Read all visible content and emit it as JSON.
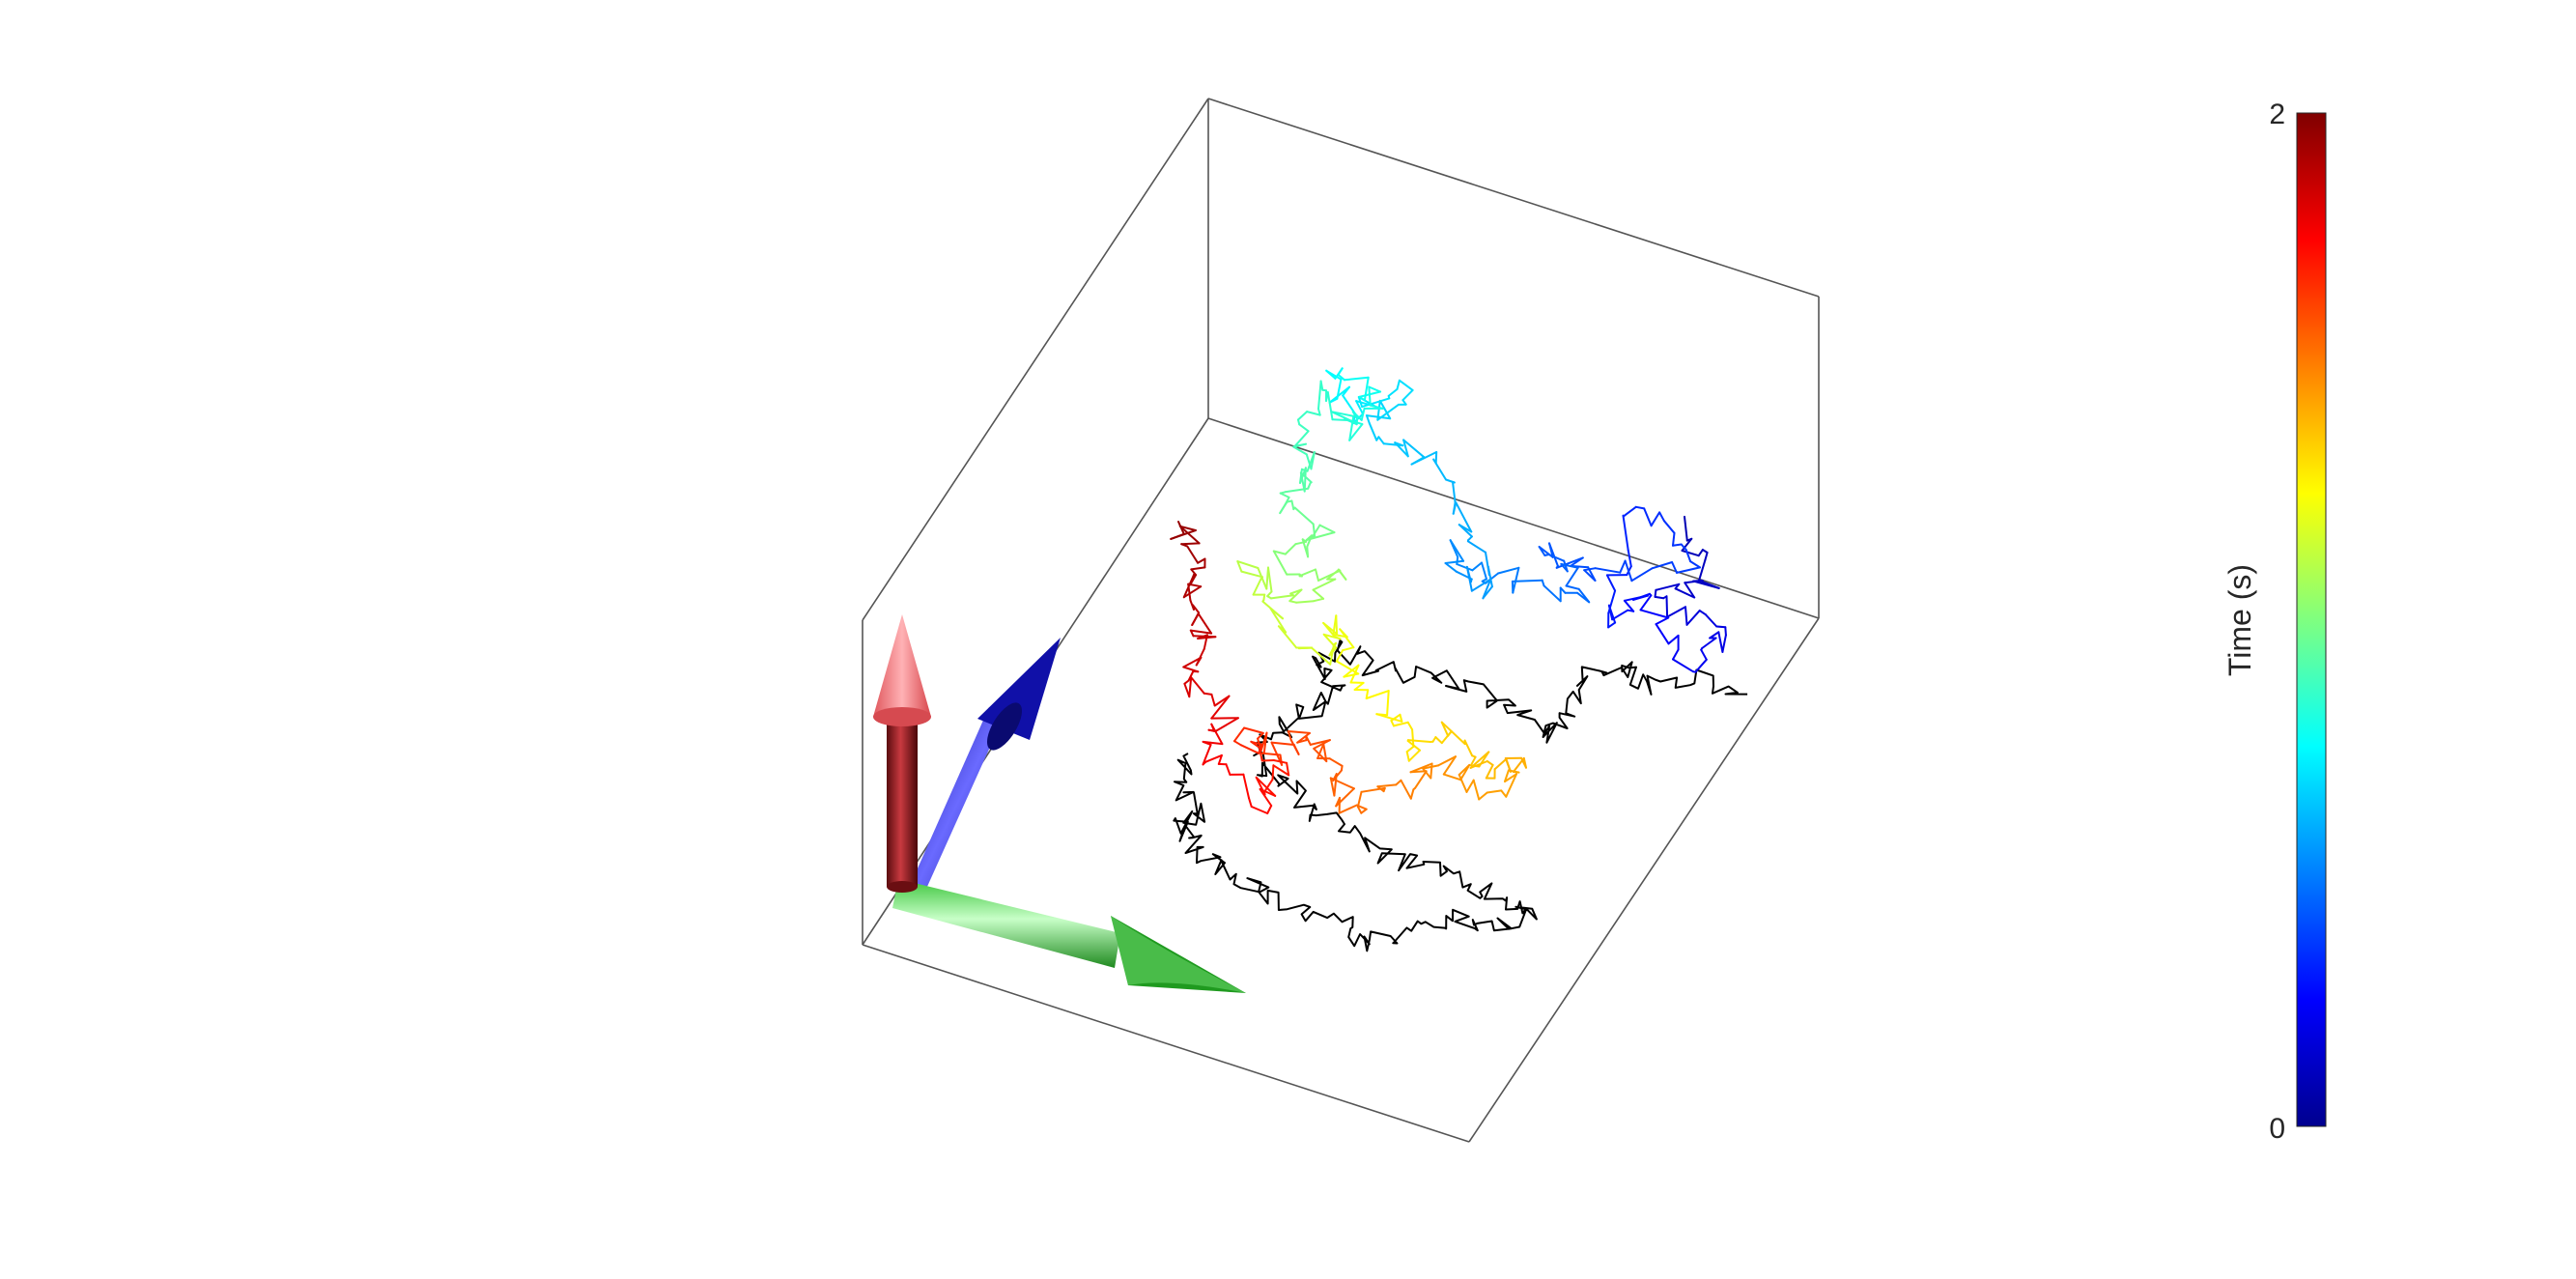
{
  "chart_data": {
    "type": "line",
    "title": "",
    "subtitle": "",
    "description_mode": "3d-trajectory",
    "colormap": "jet",
    "colorbar": {
      "label": "Time (s)",
      "min": 0,
      "max": 2,
      "tick_labels": [
        "0",
        "2"
      ]
    },
    "box": {
      "visible": true,
      "edge_color": "#555555"
    },
    "grid": false,
    "series": [
      {
        "name": "",
        "color_mode": "time-colored",
        "time_range": [
          0,
          2
        ]
      },
      {
        "name": "",
        "color_mode": "black",
        "color": "#000000"
      }
    ],
    "axis_arrows": [
      {
        "color": "#c0282c",
        "semantic": "vertical-axis-arrow"
      },
      {
        "color": "#1a1ad0",
        "semantic": "depth-axis-arrow"
      },
      {
        "color": "#20b020",
        "semantic": "horizontal-axis-arrow"
      }
    ]
  }
}
